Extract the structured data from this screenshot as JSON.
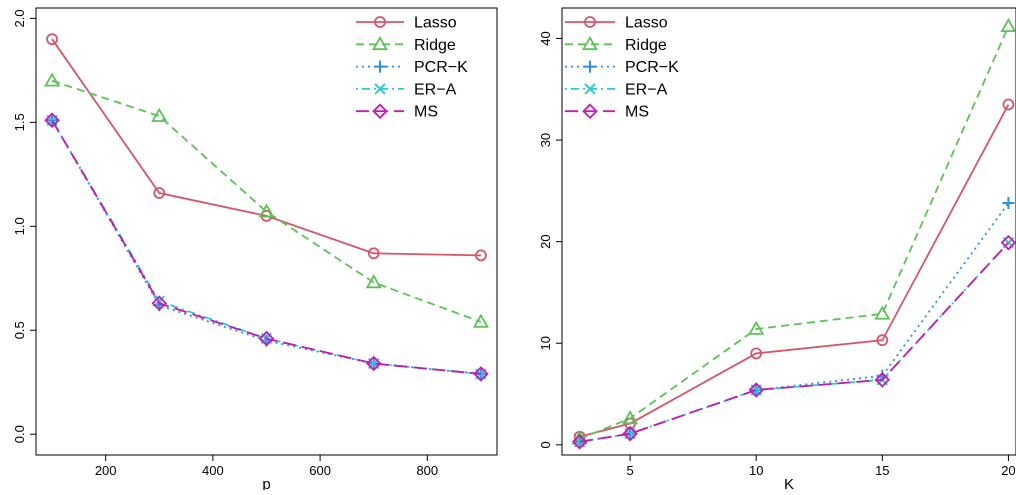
{
  "chart_data": [
    {
      "type": "line",
      "title": "",
      "xlabel": "p",
      "ylabel": "",
      "x": [
        100,
        300,
        500,
        700,
        900
      ],
      "xlim": [
        70,
        930
      ],
      "ylim": [
        -0.1,
        2.05
      ],
      "xticks": [
        200,
        400,
        600,
        800
      ],
      "yticks": [
        0.0,
        0.5,
        1.0,
        1.5,
        2.0
      ],
      "xtick_labels": [
        "200",
        "400",
        "600",
        "800"
      ],
      "ytick_labels": [
        "0.0",
        "0.5",
        "1.0",
        "1.5",
        "2.0"
      ],
      "grid": false,
      "legend_position": "top-right",
      "series": [
        {
          "name": "Lasso",
          "values": [
            1.9,
            1.16,
            1.05,
            0.87,
            0.86
          ],
          "color": "#D6556B",
          "dash": "solid",
          "marker": "circle"
        },
        {
          "name": "Ridge",
          "values": [
            1.7,
            1.53,
            1.07,
            0.73,
            0.54
          ],
          "color": "#5CC256",
          "dash": "dashed",
          "marker": "triangle"
        },
        {
          "name": "PCR−K",
          "values": [
            1.51,
            0.62,
            0.45,
            0.34,
            0.29
          ],
          "color": "#2E8FE8",
          "dash": "dotted",
          "marker": "plus"
        },
        {
          "name": "ER−A",
          "values": [
            1.51,
            0.64,
            0.46,
            0.34,
            0.29
          ],
          "color": "#2EC9D9",
          "dash": "dotdash",
          "marker": "x"
        },
        {
          "name": "MS",
          "values": [
            1.51,
            0.63,
            0.46,
            0.34,
            0.29
          ],
          "color": "#C21BB3",
          "dash": "longdash",
          "marker": "diamond"
        }
      ]
    },
    {
      "type": "line",
      "title": "",
      "xlabel": "K",
      "ylabel": "",
      "x": [
        3,
        5,
        10,
        15,
        20
      ],
      "xlim": [
        2.3,
        20.3
      ],
      "ylim": [
        -1,
        43
      ],
      "xticks": [
        5,
        10,
        15,
        20
      ],
      "yticks": [
        0,
        10,
        20,
        30,
        40
      ],
      "xtick_labels": [
        "5",
        "10",
        "15",
        "20"
      ],
      "ytick_labels": [
        "0",
        "10",
        "20",
        "30",
        "40"
      ],
      "grid": false,
      "legend_position": "top-left",
      "series": [
        {
          "name": "Lasso",
          "values": [
            0.8,
            2.1,
            9.0,
            10.3,
            33.5
          ],
          "color": "#D6556B",
          "dash": "solid",
          "marker": "circle"
        },
        {
          "name": "Ridge",
          "values": [
            0.6,
            2.6,
            11.4,
            12.9,
            41.2
          ],
          "color": "#5CC256",
          "dash": "dashed",
          "marker": "triangle"
        },
        {
          "name": "PCR−K",
          "values": [
            0.3,
            1.1,
            5.4,
            6.8,
            23.8
          ],
          "color": "#2E8FE8",
          "dash": "dotted",
          "marker": "plus"
        },
        {
          "name": "ER−A",
          "values": [
            0.3,
            1.1,
            5.4,
            6.4,
            19.9
          ],
          "color": "#2EC9D9",
          "dash": "dotdash",
          "marker": "x"
        },
        {
          "name": "MS",
          "values": [
            0.3,
            1.1,
            5.4,
            6.4,
            19.9
          ],
          "color": "#C21BB3",
          "dash": "longdash",
          "marker": "diamond"
        }
      ]
    }
  ]
}
